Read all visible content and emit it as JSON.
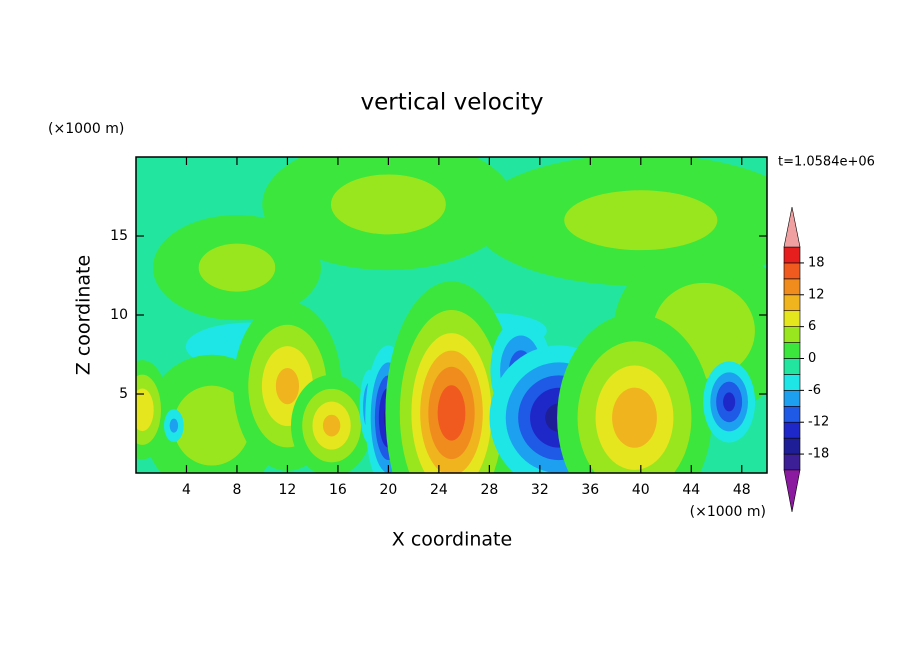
{
  "chart_data": {
    "type": "contour",
    "title": "vertical velocity",
    "x_label": "X coordinate",
    "y_label": "Z coordinate",
    "x_unit": "(×1000 m)",
    "y_unit": "(×1000 m)",
    "annotation": "t=1.0584e+06",
    "xlim": [
      0,
      50
    ],
    "ylim": [
      0,
      20
    ],
    "xticks": [
      4,
      8,
      12,
      16,
      20,
      24,
      28,
      32,
      36,
      40,
      44,
      48
    ],
    "yticks": [
      5,
      10,
      15
    ],
    "levels": [
      -21,
      -18,
      -15,
      -12,
      -9,
      -6,
      -3,
      0,
      3,
      6,
      9,
      12,
      15,
      18,
      21
    ],
    "level_colors": [
      "#3c1e96",
      "#1e1e96",
      "#1e28c8",
      "#1e5ae6",
      "#1ea0f0",
      "#1ee6e6",
      "#22e6a0",
      "#3ce63c",
      "#9ae61e",
      "#e6e61e",
      "#f0b41e",
      "#f08c1e",
      "#f05a1e",
      "#e61e1e"
    ],
    "extend_colors": [
      "#8b1aa0",
      "#f0a0a0"
    ],
    "colorbar_ticks": [
      -18,
      -12,
      -6,
      0,
      6,
      12,
      18
    ],
    "extrema": [
      {
        "x": 20,
        "y": 17,
        "value": 4,
        "sx": 6,
        "sy": 2.5
      },
      {
        "x": 40,
        "y": 16,
        "value": 4,
        "sx": 8,
        "sy": 2.5
      },
      {
        "x": 8,
        "y": 13,
        "value": 4,
        "sx": 4,
        "sy": 2
      },
      {
        "x": 45,
        "y": 9,
        "value": 5,
        "sx": 4,
        "sy": 3
      },
      {
        "x": 9,
        "y": 8,
        "value": -5,
        "sx": 5,
        "sy": 1.5
      },
      {
        "x": 28,
        "y": 9,
        "value": -4,
        "sx": 6,
        "sy": 1.5
      },
      {
        "x": 6,
        "y": 3,
        "value": 5,
        "sx": 3,
        "sy": 2.5
      },
      {
        "x": 0.5,
        "y": 4,
        "value": 9,
        "sx": 1,
        "sy": 1.5
      },
      {
        "x": 3,
        "y": 3,
        "value": -7,
        "sx": 0.6,
        "sy": 0.8
      },
      {
        "x": 12,
        "y": 5.5,
        "value": 10,
        "sx": 2,
        "sy": 2.5
      },
      {
        "x": 15.5,
        "y": 3,
        "value": 10,
        "sx": 1.5,
        "sy": 1.5
      },
      {
        "x": 18.5,
        "y": 4.2,
        "value": -10,
        "sx": 0.5,
        "sy": 1.5
      },
      {
        "x": 20,
        "y": 3.5,
        "value": -16,
        "sx": 1,
        "sy": 2.5
      },
      {
        "x": 25,
        "y": 3.8,
        "value": 17,
        "sx": 2.2,
        "sy": 3.5
      },
      {
        "x": 30.5,
        "y": 6.5,
        "value": -11,
        "sx": 1.5,
        "sy": 2
      },
      {
        "x": 33.5,
        "y": 3.5,
        "value": -16,
        "sx": 3,
        "sy": 2.5
      },
      {
        "x": 39.5,
        "y": 3.5,
        "value": 11,
        "sx": 2.8,
        "sy": 3
      },
      {
        "x": 47,
        "y": 4.5,
        "value": -13,
        "sx": 1.2,
        "sy": 1.5
      }
    ]
  }
}
